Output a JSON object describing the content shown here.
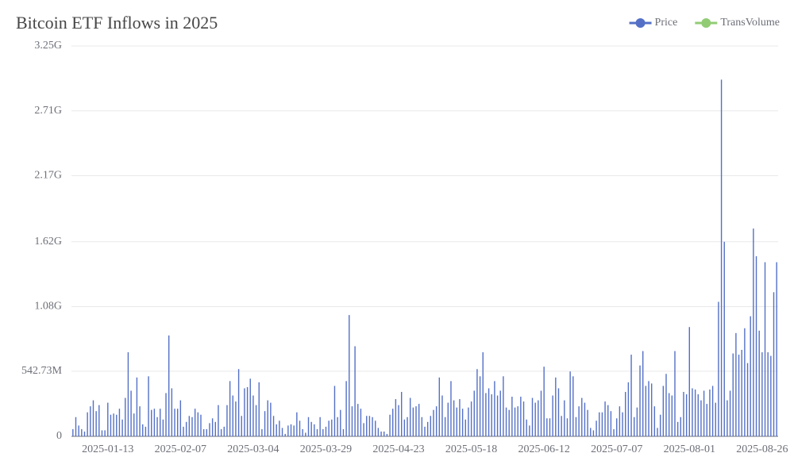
{
  "chart_data": {
    "type": "bar",
    "title": "Bitcoin ETF Inflows in 2025",
    "categories": [
      null,
      null,
      null,
      null,
      null,
      null,
      null,
      null,
      null,
      null,
      null,
      null,
      "2025-01-13",
      null,
      null,
      null,
      null,
      null,
      null,
      null,
      null,
      null,
      null,
      null,
      null,
      null,
      null,
      null,
      null,
      null,
      null,
      null,
      null,
      null,
      null,
      null,
      null,
      "2025-02-07",
      null,
      null,
      null,
      null,
      null,
      null,
      null,
      null,
      null,
      null,
      null,
      null,
      null,
      null,
      null,
      null,
      null,
      null,
      null,
      null,
      null,
      null,
      null,
      null,
      "2025-03-04",
      null,
      null,
      null,
      null,
      null,
      null,
      null,
      null,
      null,
      null,
      null,
      null,
      null,
      null,
      null,
      null,
      null,
      null,
      null,
      null,
      null,
      null,
      null,
      null,
      "2025-03-29",
      null,
      null,
      null,
      null,
      null,
      null,
      null,
      null,
      null,
      null,
      null,
      null,
      null,
      null,
      null,
      null,
      null,
      null,
      null,
      null,
      null,
      null,
      null,
      null,
      "2025-04-23",
      null,
      null,
      null,
      null,
      null,
      null,
      null,
      null,
      null,
      null,
      null,
      null,
      null,
      null,
      null,
      null,
      null,
      null,
      null,
      null,
      null,
      null,
      null,
      null,
      "2025-05-18",
      null,
      null,
      null,
      null,
      null,
      null,
      null,
      null,
      null,
      null,
      null,
      null,
      null,
      null,
      null,
      null,
      null,
      null,
      null,
      null,
      null,
      null,
      null,
      null,
      "2025-06-12",
      null,
      null,
      null,
      null,
      null,
      null,
      null,
      null,
      null,
      null,
      null,
      null,
      null,
      null,
      null,
      null,
      null,
      null,
      null,
      null,
      null,
      null,
      null,
      null,
      "2025-07-07",
      null,
      null,
      null,
      null,
      null,
      null,
      null,
      null,
      null,
      null,
      null,
      null,
      null,
      null,
      null,
      null,
      null,
      null,
      null,
      null,
      null,
      null,
      null,
      null,
      "2025-08-01",
      null,
      null,
      null,
      null,
      null,
      null,
      null,
      null,
      null,
      null,
      null,
      null,
      null,
      null,
      null,
      null,
      null,
      null,
      null,
      null,
      null,
      null,
      null,
      null,
      "2025-08-26",
      null,
      null,
      null,
      null,
      null
    ],
    "series": [
      {
        "name": "Price",
        "color": "#5470c6",
        "values": [
          60000000.0,
          160000000.0,
          90000000.0,
          60000000.0,
          40000000.0,
          200000000.0,
          250000000.0,
          300000000.0,
          210000000.0,
          260000000.0,
          50000000.0,
          50000000.0,
          280000000.0,
          180000000.0,
          190000000.0,
          180000000.0,
          230000000.0,
          140000000.0,
          320000000.0,
          700000000.0,
          380000000.0,
          190000000.0,
          490000000.0,
          250000000.0,
          100000000.0,
          80000000.0,
          500000000.0,
          220000000.0,
          230000000.0,
          160000000.0,
          230000000.0,
          140000000.0,
          360000000.0,
          840000000.0,
          400000000.0,
          230000000.0,
          230000000.0,
          300000000.0,
          80000000.0,
          120000000.0,
          170000000.0,
          160000000.0,
          230000000.0,
          200000000.0,
          180000000.0,
          60000000.0,
          60000000.0,
          110000000.0,
          150000000.0,
          120000000.0,
          260000000.0,
          60000000.0,
          80000000.0,
          260000000.0,
          460000000.0,
          340000000.0,
          290000000.0,
          560000000.0,
          170000000.0,
          400000000.0,
          410000000.0,
          480000000.0,
          340000000.0,
          260000000.0,
          450000000.0,
          60000000.0,
          210000000.0,
          300000000.0,
          280000000.0,
          170000000.0,
          100000000.0,
          130000000.0,
          70000000.0,
          20000000.0,
          90000000.0,
          100000000.0,
          90000000.0,
          200000000.0,
          130000000.0,
          60000000.0,
          30000000.0,
          160000000.0,
          120000000.0,
          100000000.0,
          60000000.0,
          160000000.0,
          60000000.0,
          80000000.0,
          130000000.0,
          140000000.0,
          420000000.0,
          160000000.0,
          220000000.0,
          60000000.0,
          460000000.0,
          1010000000.0,
          250000000.0,
          750000000.0,
          270000000.0,
          230000000.0,
          110000000.0,
          170000000.0,
          170000000.0,
          160000000.0,
          130000000.0,
          70000000.0,
          40000000.0,
          40000000.0,
          20000000.0,
          180000000.0,
          230000000.0,
          310000000.0,
          260000000.0,
          370000000.0,
          140000000.0,
          160000000.0,
          320000000.0,
          240000000.0,
          250000000.0,
          270000000.0,
          160000000.0,
          80000000.0,
          120000000.0,
          170000000.0,
          220000000.0,
          250000000.0,
          490000000.0,
          340000000.0,
          160000000.0,
          280000000.0,
          460000000.0,
          300000000.0,
          240000000.0,
          310000000.0,
          230000000.0,
          140000000.0,
          240000000.0,
          290000000.0,
          380000000.0,
          560000000.0,
          500000000.0,
          700000000.0,
          360000000.0,
          400000000.0,
          350000000.0,
          460000000.0,
          340000000.0,
          380000000.0,
          500000000.0,
          240000000.0,
          220000000.0,
          330000000.0,
          240000000.0,
          250000000.0,
          330000000.0,
          290000000.0,
          140000000.0,
          90000000.0,
          320000000.0,
          280000000.0,
          300000000.0,
          380000000.0,
          580000000.0,
          150000000.0,
          150000000.0,
          340000000.0,
          490000000.0,
          400000000.0,
          170000000.0,
          300000000.0,
          150000000.0,
          540000000.0,
          500000000.0,
          160000000.0,
          250000000.0,
          320000000.0,
          280000000.0,
          220000000.0,
          70000000.0,
          50000000.0,
          130000000.0,
          200000000.0,
          200000000.0,
          290000000.0,
          260000000.0,
          210000000.0,
          60000000.0,
          150000000.0,
          250000000.0,
          200000000.0,
          370000000.0,
          450000000.0,
          680000000.0,
          160000000.0,
          240000000.0,
          590000000.0,
          710000000.0,
          420000000.0,
          460000000.0,
          440000000.0,
          250000000.0,
          70000000.0,
          180000000.0,
          420000000.0,
          520000000.0,
          360000000.0,
          340000000.0,
          710000000.0,
          120000000.0,
          160000000.0,
          370000000.0,
          350000000.0,
          910000000.0,
          400000000.0,
          390000000.0,
          350000000.0,
          300000000.0,
          380000000.0,
          270000000.0,
          390000000.0,
          420000000.0,
          280000000.0,
          1120000000.0,
          2970000000.0,
          1620000000.0,
          300000000.0,
          380000000.0,
          690000000.0,
          860000000.0,
          680000000.0,
          720000000.0,
          900000000.0,
          610000000.0,
          1000000000.0,
          1730000000.0,
          1500000000.0,
          880000000.0,
          700000000.0,
          1450000000.0,
          700000000.0,
          670000000.0,
          1200000000.0,
          1450000000.0
        ]
      },
      {
        "name": "TransVolume",
        "color": "#91cc75",
        "values": [
          null,
          null,
          null,
          null,
          null,
          null,
          null,
          null,
          null,
          null,
          null,
          null,
          null,
          null,
          null,
          null,
          null,
          null,
          null,
          null,
          null,
          null,
          null,
          null,
          null,
          null,
          null,
          null,
          null,
          null,
          null,
          null,
          null,
          null,
          null,
          null,
          null,
          null,
          null,
          null,
          null,
          null,
          null,
          null,
          null,
          null,
          null,
          null,
          null,
          null,
          null,
          null,
          null,
          null,
          null,
          null,
          null,
          null,
          null,
          null,
          null,
          null,
          null,
          null,
          null,
          null,
          null,
          null,
          null,
          null,
          null,
          null,
          null,
          null,
          null,
          null,
          null,
          null,
          null,
          null,
          null,
          null,
          null,
          null,
          null,
          null,
          null,
          null,
          null,
          null,
          null,
          null,
          null,
          null,
          null,
          null,
          null,
          null,
          null,
          null,
          null,
          null,
          null,
          null,
          null,
          null,
          null,
          null,
          null,
          null,
          null,
          null,
          null,
          null,
          null,
          null,
          null,
          null,
          null,
          null,
          null,
          null,
          null,
          null,
          null,
          null,
          null,
          null,
          null,
          null,
          null,
          null,
          null,
          null,
          null,
          null,
          null,
          null,
          null,
          null,
          null,
          null,
          null,
          null,
          null,
          null,
          null,
          null,
          null,
          null,
          null,
          null,
          null,
          null,
          null,
          null,
          null,
          null,
          null,
          null,
          null,
          null,
          null,
          null,
          null,
          null,
          null,
          null,
          null,
          null,
          null,
          null,
          null,
          null,
          null,
          null,
          null,
          null,
          null,
          null,
          null,
          null,
          null,
          null,
          null,
          null,
          null,
          null,
          null,
          null,
          null,
          null,
          null,
          null,
          null,
          null,
          null,
          null,
          null,
          null,
          null,
          null,
          null,
          null,
          null,
          null,
          null,
          null,
          null,
          null,
          null,
          null,
          null,
          null,
          null,
          null,
          null,
          null,
          null,
          null,
          null,
          null,
          null,
          null,
          null,
          null,
          null,
          null,
          null,
          null,
          null,
          null,
          null,
          null,
          null,
          null,
          null,
          null,
          null,
          null,
          null,
          null,
          null
        ]
      }
    ],
    "ylim": [
      0,
      3250000000
    ],
    "yticks": [
      0,
      {
        "value": 542730000,
        "label": "542.73M"
      },
      {
        "value": 1080000000,
        "label": "1.08G"
      },
      {
        "value": 1620000000,
        "label": "1.62G"
      },
      {
        "value": 2170000000,
        "label": "2.17G"
      },
      {
        "value": 2710000000,
        "label": "2.71G"
      },
      {
        "value": 3250000000,
        "label": "3.25G"
      }
    ],
    "grid": true,
    "legend": "top-right"
  }
}
